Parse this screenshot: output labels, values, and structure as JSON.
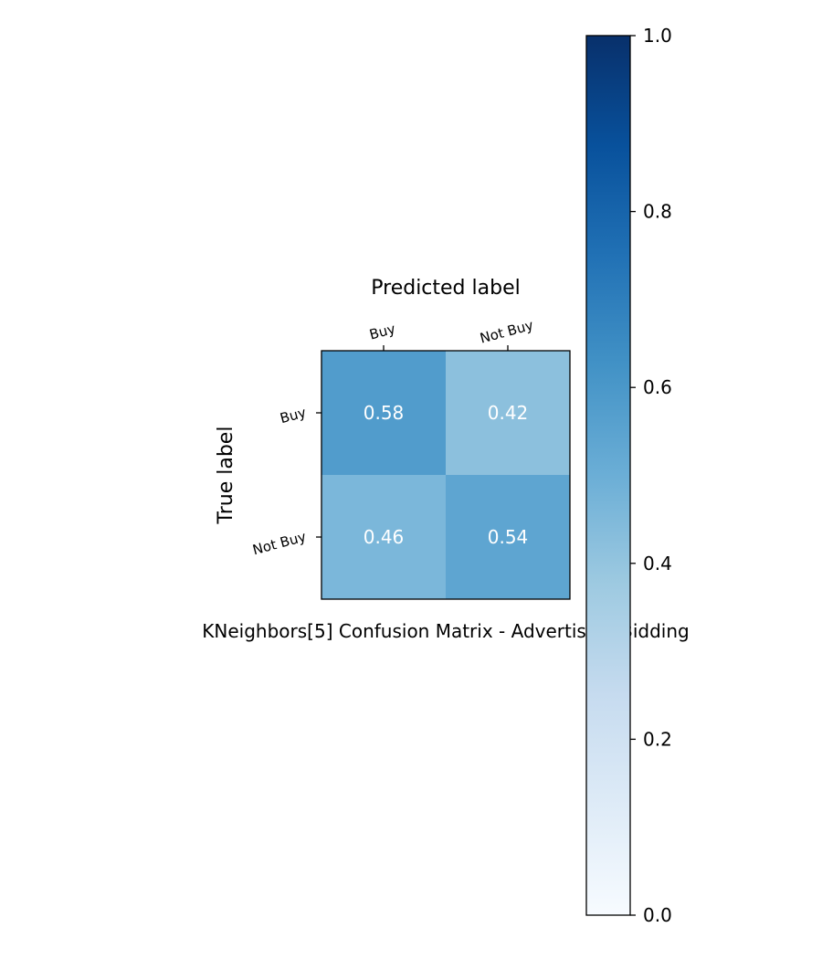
{
  "chart_data": {
    "type": "heatmap",
    "title": "KNeighbors[5]  Confusion Matrix - Advertising Bidding",
    "xlabel": "Predicted label",
    "ylabel": "True label",
    "x_categories": [
      "Buy",
      "Not Buy"
    ],
    "y_categories": [
      "Buy",
      "Not Buy"
    ],
    "values": [
      [
        0.58,
        0.42
      ],
      [
        0.46,
        0.54
      ]
    ],
    "cell_labels": [
      [
        "0.58",
        "0.42"
      ],
      [
        "0.46",
        "0.54"
      ]
    ],
    "colorbar": {
      "range": [
        0.0,
        1.0
      ],
      "ticks": [
        0.0,
        0.2,
        0.4,
        0.6,
        0.8,
        1.0
      ],
      "tick_labels": [
        "0.0",
        "0.2",
        "0.4",
        "0.6",
        "0.8",
        "1.0"
      ],
      "colormap": "Blues",
      "colormap_stops": [
        "#f7fbff",
        "#deebf7",
        "#c6dbef",
        "#9ecae1",
        "#6baed6",
        "#4292c6",
        "#2171b5",
        "#08519c",
        "#08306b"
      ]
    },
    "cell_text_color": "#ffffff",
    "grid": false
  }
}
